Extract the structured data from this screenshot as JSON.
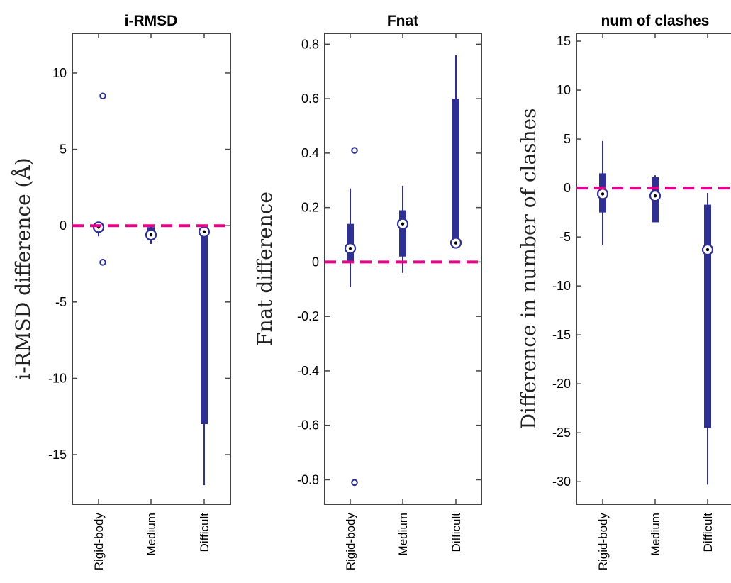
{
  "chart_data": [
    {
      "type": "boxplot",
      "title": "i-RMSD",
      "ylabel": "i-RMSD difference (Å)",
      "ylim": [
        -18.25,
        12.6
      ],
      "yticks": [
        -15,
        -10,
        -5,
        0,
        5,
        10
      ],
      "categories": [
        "Rigid-body",
        "Medium",
        "Difficult"
      ],
      "reference_line": 0,
      "boxes": [
        {
          "category": "Rigid-body",
          "whisker_low": -0.7,
          "q1": -0.3,
          "median": -0.1,
          "q3": 0.1,
          "whisker_high": 0.2,
          "outliers": [
            8.5,
            -2.4
          ]
        },
        {
          "category": "Medium",
          "whisker_low": -1.2,
          "q1": -0.7,
          "median": -0.6,
          "q3": -0.1,
          "whisker_high": 0.0,
          "outliers": []
        },
        {
          "category": "Difficult",
          "whisker_low": -17.0,
          "q1": -13.0,
          "median": -0.4,
          "q3": -0.2,
          "whisker_high": -0.1,
          "outliers": []
        }
      ]
    },
    {
      "type": "boxplot",
      "title": "Fnat",
      "ylabel": "Fnat difference",
      "ylim": [
        -0.89,
        0.84
      ],
      "yticks": [
        -0.8,
        -0.6,
        -0.4,
        -0.2,
        0,
        0.2,
        0.4,
        0.6,
        0.8
      ],
      "categories": [
        "Rigid-body",
        "Medium",
        "Difficult"
      ],
      "reference_line": 0,
      "boxes": [
        {
          "category": "Rigid-body",
          "whisker_low": -0.09,
          "q1": 0.0,
          "median": 0.05,
          "q3": 0.14,
          "whisker_high": 0.27,
          "outliers": [
            0.41,
            -0.81
          ]
        },
        {
          "category": "Medium",
          "whisker_low": -0.04,
          "q1": 0.02,
          "median": 0.14,
          "q3": 0.19,
          "whisker_high": 0.28,
          "outliers": []
        },
        {
          "category": "Difficult",
          "whisker_low": 0.06,
          "q1": 0.07,
          "median": 0.07,
          "q3": 0.6,
          "whisker_high": 0.76,
          "outliers": []
        }
      ]
    },
    {
      "type": "boxplot",
      "title": "num of clashes",
      "ylabel": "Difference in number of clashes",
      "ylim": [
        -32.3,
        15.8
      ],
      "yticks": [
        -30,
        -25,
        -20,
        -15,
        -10,
        -5,
        0,
        5,
        10,
        15
      ],
      "categories": [
        "Rigid-body",
        "Medium",
        "Difficult"
      ],
      "reference_line": 0,
      "boxes": [
        {
          "category": "Rigid-body",
          "whisker_low": -5.8,
          "q1": -2.5,
          "median": -0.6,
          "q3": 1.5,
          "whisker_high": 4.8,
          "outliers": []
        },
        {
          "category": "Medium",
          "whisker_low": -3.5,
          "q1": -3.5,
          "median": -0.8,
          "q3": 1.1,
          "whisker_high": 1.3,
          "outliers": []
        },
        {
          "category": "Difficult",
          "whisker_low": -30.3,
          "q1": -24.5,
          "median": -6.3,
          "q3": -1.7,
          "whisker_high": -0.5,
          "outliers": []
        }
      ]
    }
  ],
  "colors": {
    "box": "#2E3192",
    "reference_line": "#E6008A",
    "axis": "#444444"
  }
}
